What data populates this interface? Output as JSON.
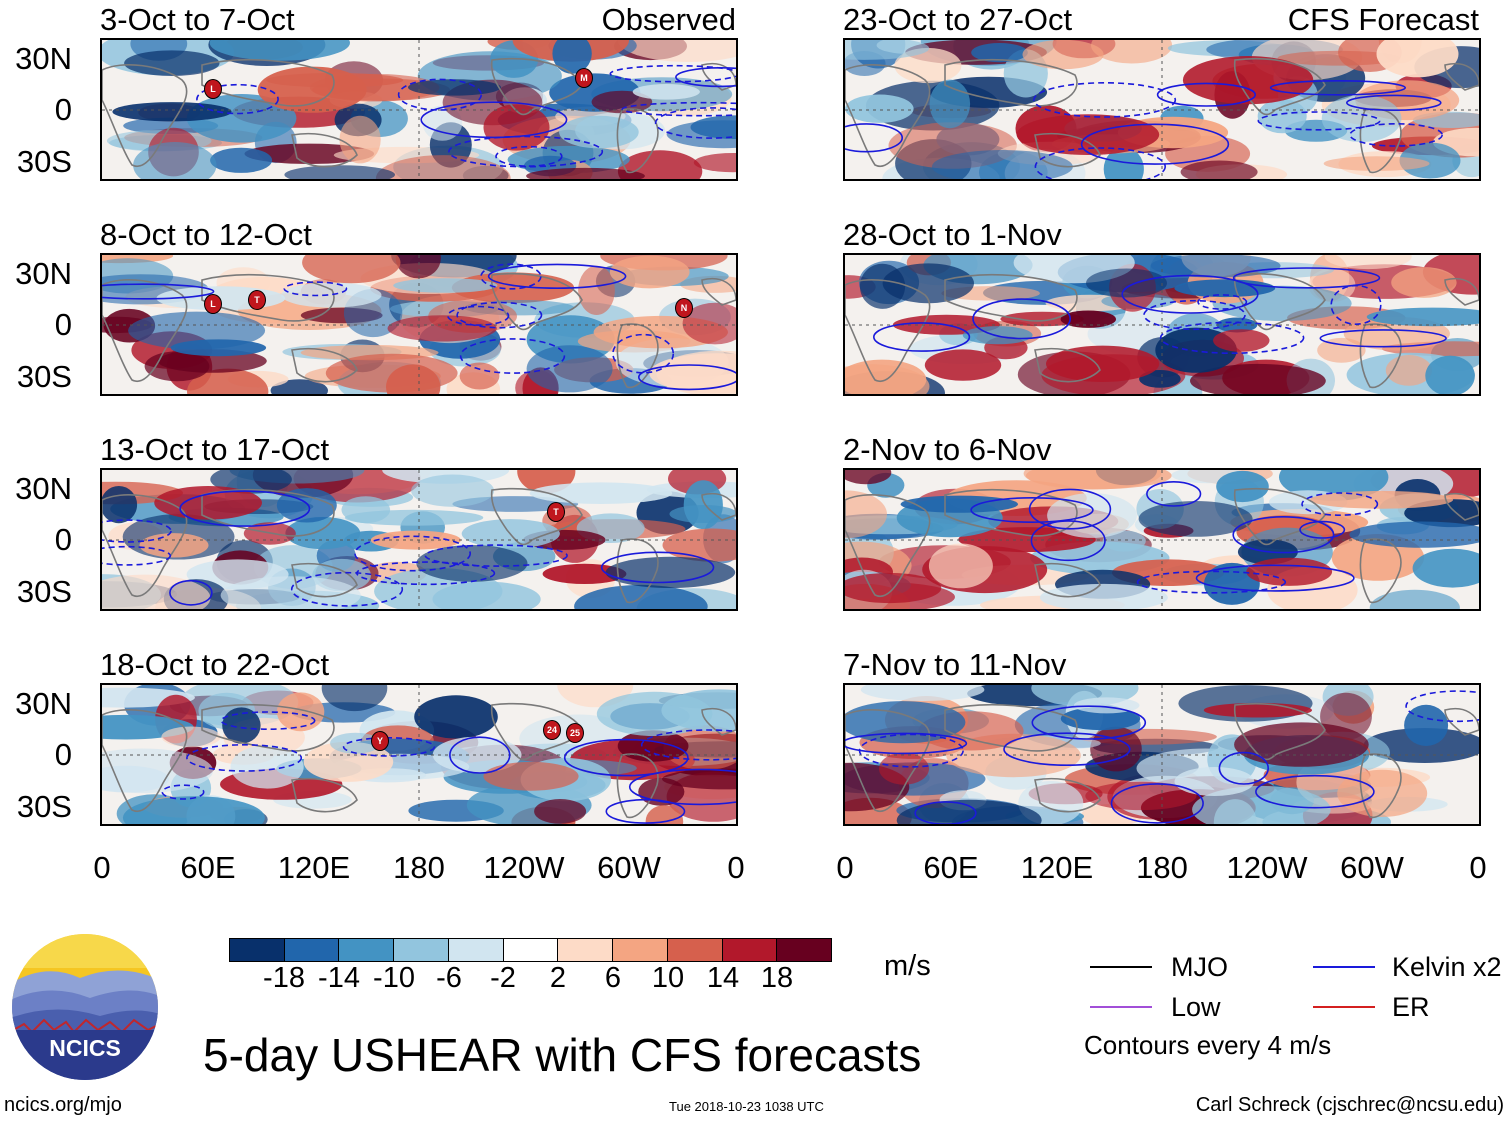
{
  "panels": [
    {
      "title": "3-Oct to 7-Oct",
      "header": "Observed",
      "storms": [
        "L",
        "M"
      ]
    },
    {
      "title": "8-Oct to 12-Oct",
      "header": "",
      "storms": [
        "L",
        "T",
        "N"
      ]
    },
    {
      "title": "13-Oct to 17-Oct",
      "header": "",
      "storms": [
        "T"
      ]
    },
    {
      "title": "18-Oct to 22-Oct",
      "header": "",
      "storms": [
        "Y",
        "24",
        "25"
      ]
    },
    {
      "title": "23-Oct to 27-Oct",
      "header": "CFS Forecast",
      "storms": []
    },
    {
      "title": "28-Oct to 1-Nov",
      "header": "",
      "storms": []
    },
    {
      "title": "2-Nov to 6-Nov",
      "header": "",
      "storms": []
    },
    {
      "title": "7-Nov to 11-Nov",
      "header": "",
      "storms": []
    }
  ],
  "y_ticks": [
    "30N",
    "0",
    "30S"
  ],
  "x_ticks": [
    "0",
    "60E",
    "120E",
    "180",
    "120W",
    "60W",
    "0"
  ],
  "colorbar": {
    "colors": [
      "#08306b",
      "#2166ac",
      "#4393c3",
      "#92c5de",
      "#d1e5f0",
      "#ffffff",
      "#fddbc7",
      "#f4a582",
      "#d6604d",
      "#b2182b",
      "#67001f"
    ],
    "labels": [
      "-18",
      "-14",
      "-10",
      "-6",
      "-2",
      "2",
      "6",
      "10",
      "14",
      "18"
    ],
    "units": "m/s"
  },
  "legend": [
    {
      "label": "MJO",
      "color": "#000000"
    },
    {
      "label": "Kelvin x2",
      "color": "#1a1adb"
    },
    {
      "label": "Low",
      "color": "#a24fd8"
    },
    {
      "label": "ER",
      "color": "#d42020"
    }
  ],
  "contour_note": "Contours every 4 m/s",
  "main_title": "5-day USHEAR with CFS forecasts",
  "logo_text": "NCICS",
  "footer": {
    "left": "ncics.org/mjo",
    "center": "Tue 2018-10-23 1038 UTC",
    "right": "Carl Schreck (cjschrec@ncsu.edu)"
  }
}
